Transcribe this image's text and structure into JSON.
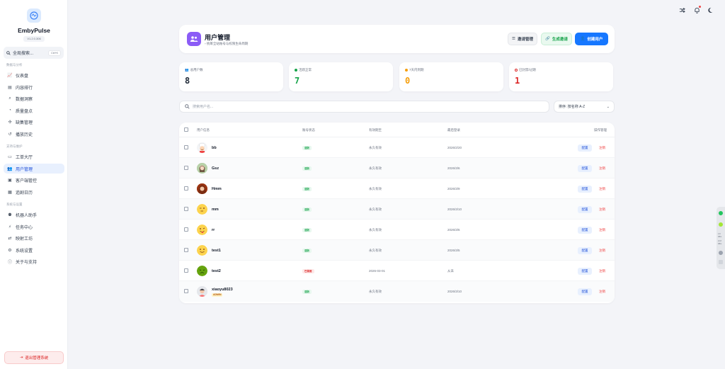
{
  "app": {
    "name": "EmbyPulse",
    "version": "V1.2.0.306"
  },
  "sidebar": {
    "search_placeholder": "全局搜索...",
    "search_shortcut": "Ctrl+K",
    "sections": [
      "数据与分析",
      "支持与维护",
      "系统与设置"
    ],
    "items": [
      {
        "label": "仪表盘",
        "icon": "chart-icon"
      },
      {
        "label": "内容排行",
        "icon": "film-icon"
      },
      {
        "label": "数据洞察",
        "icon": "magnify-icon"
      },
      {
        "label": "质量盘点",
        "icon": "gauge-icon"
      },
      {
        "label": "缺集管理",
        "icon": "puzzle-icon"
      },
      {
        "label": "播放历史",
        "icon": "history-icon"
      },
      {
        "label": "工单大厅",
        "icon": "ticket-icon"
      },
      {
        "label": "用户管理",
        "icon": "users-icon"
      },
      {
        "label": "客户端管控",
        "icon": "monitor-icon"
      },
      {
        "label": "追剧日历",
        "icon": "calendar-icon"
      },
      {
        "label": "机器人助手",
        "icon": "robot-icon"
      },
      {
        "label": "任务中心",
        "icon": "bolt-icon"
      },
      {
        "label": "映射工坊",
        "icon": "shuffle-icon"
      },
      {
        "label": "系统设置",
        "icon": "gear-icon"
      },
      {
        "label": "关于与支持",
        "icon": "info-icon"
      }
    ],
    "logout_label": "退出管理系统"
  },
  "header": {
    "title": "用户管理",
    "subtitle": "统筹全站账号与权限生命周期",
    "invite_label": "邀请管理",
    "generate_label": "生成邀请",
    "create_label": "创建用户"
  },
  "stats": [
    {
      "label": "总用户数",
      "value": "8",
      "color": "#1f2937"
    },
    {
      "label": "活跃正常",
      "value": "7",
      "color": "#16a34a"
    },
    {
      "label": "7天内到期",
      "value": "0",
      "color": "#f59e0b"
    },
    {
      "label": "已封禁/过期",
      "value": "1",
      "color": "#dc2626"
    }
  ],
  "search": {
    "placeholder": "搜索用户名..."
  },
  "sort": {
    "value": "排序: 按名称 A-Z"
  },
  "table": {
    "headers": [
      "用户信息",
      "账号状态",
      "有效期至",
      "最后登录",
      "操作管理"
    ],
    "config_label": "配置",
    "delete_label": "注销",
    "rows": [
      {
        "name": "bb",
        "status": "活跃",
        "status_type": "ok",
        "validity": "永久有效",
        "last_login": "2026/2/20",
        "avatar": "chef"
      },
      {
        "name": "Gsz",
        "status": "活跃",
        "status_type": "ok",
        "validity": "永久有效",
        "last_login": "2026/3/6",
        "avatar": "girl"
      },
      {
        "name": "Hmm",
        "status": "活跃",
        "status_type": "ok",
        "validity": "永久有效",
        "last_login": "2026/3/9",
        "avatar": "woman"
      },
      {
        "name": "mm",
        "status": "活跃",
        "status_type": "ok",
        "validity": "永久有效",
        "last_login": "2026/3/10",
        "avatar": "sleepy"
      },
      {
        "name": "rr",
        "status": "活跃",
        "status_type": "ok",
        "validity": "永久有效",
        "last_login": "2026/3/6",
        "avatar": "tongue"
      },
      {
        "name": "test1",
        "status": "活跃",
        "status_type": "ok",
        "validity": "永久有效",
        "last_login": "2026/3/5",
        "avatar": "smile"
      },
      {
        "name": "test2",
        "status": "已禁用",
        "status_type": "off",
        "validity": "2026-03-01",
        "last_login": "从未",
        "avatar": "sick"
      },
      {
        "name": "xiaoyu8023",
        "badge": "ADMIN",
        "status": "活跃",
        "status_type": "ok",
        "validity": "永久有效",
        "last_login": "2026/3/10",
        "avatar": "man"
      }
    ]
  },
  "float_panel": {
    "line1": "4.8",
    "line2": "KB/s",
    "line3": "21.8",
    "line4": "KB/s"
  },
  "colors": {
    "accent": "#1677ff",
    "success": "#16a34a",
    "danger": "#dc2626",
    "warning": "#f59e0b",
    "header_icon": "#8b5cf6"
  }
}
